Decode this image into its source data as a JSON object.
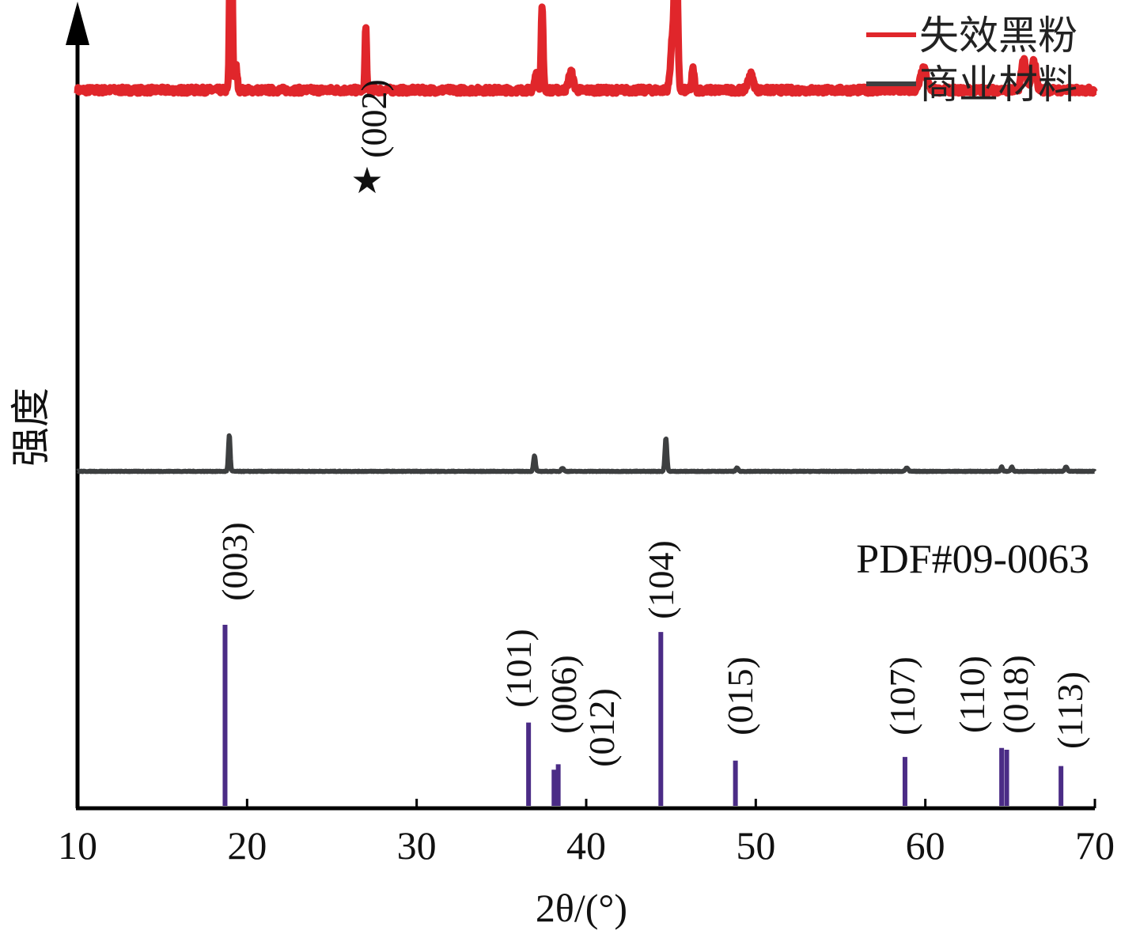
{
  "chart_data": {
    "type": "line",
    "xlabel": "2θ/(°)",
    "ylabel": "强度",
    "xlim": [
      10,
      70
    ],
    "xticks": [
      "10",
      "20",
      "30",
      "40",
      "50",
      "60",
      "70"
    ],
    "grid": false,
    "legend_position": "top-right",
    "reference_label": "PDF#09-0063",
    "star_annotation": {
      "marker": "★",
      "label": "(002)",
      "x": 27.0
    },
    "series": [
      {
        "name": "失效黑粉",
        "color": "#e0262b",
        "baseline": 0.7,
        "noise": 0.012,
        "peaks": [
          {
            "x": 19.05,
            "h": 0.97,
            "w": 0.11
          },
          {
            "x": 19.35,
            "h": 0.09,
            "w": 0.12
          },
          {
            "x": 27.0,
            "h": 0.24,
            "w": 0.08
          },
          {
            "x": 37.4,
            "h": 0.32,
            "w": 0.1
          },
          {
            "x": 37.05,
            "h": 0.06,
            "w": 0.15
          },
          {
            "x": 39.1,
            "h": 0.07,
            "w": 0.22
          },
          {
            "x": 45.3,
            "h": 0.64,
            "w": 0.14
          },
          {
            "x": 45.1,
            "h": 0.2,
            "w": 0.2
          },
          {
            "x": 46.3,
            "h": 0.08,
            "w": 0.12
          },
          {
            "x": 49.7,
            "h": 0.06,
            "w": 0.25
          },
          {
            "x": 59.9,
            "h": 0.08,
            "w": 0.3
          },
          {
            "x": 65.8,
            "h": 0.12,
            "w": 0.22
          },
          {
            "x": 66.4,
            "h": 0.11,
            "w": 0.22
          }
        ]
      },
      {
        "name": "商业材料",
        "color": "#3d3f40",
        "baseline": 0.1,
        "noise": 0.003,
        "peaks": [
          {
            "x": 18.95,
            "h": 0.33,
            "w": 0.09
          },
          {
            "x": 36.95,
            "h": 0.14,
            "w": 0.1
          },
          {
            "x": 38.6,
            "h": 0.03,
            "w": 0.12
          },
          {
            "x": 44.7,
            "h": 0.3,
            "w": 0.1
          },
          {
            "x": 48.9,
            "h": 0.03,
            "w": 0.12
          },
          {
            "x": 58.9,
            "h": 0.03,
            "w": 0.14
          },
          {
            "x": 64.5,
            "h": 0.04,
            "w": 0.1
          },
          {
            "x": 65.1,
            "h": 0.04,
            "w": 0.1
          },
          {
            "x": 68.3,
            "h": 0.04,
            "w": 0.12
          }
        ]
      }
    ],
    "reference_peaks": {
      "color": "#4b2c86",
      "peaks": [
        {
          "x": 18.7,
          "intensity": 100,
          "hkl": "(003)"
        },
        {
          "x": 36.6,
          "intensity": 46,
          "hkl": "(101)"
        },
        {
          "x": 38.1,
          "intensity": 20,
          "hkl": "(006)"
        },
        {
          "x": 38.35,
          "intensity": 23,
          "hkl": "(012)"
        },
        {
          "x": 44.4,
          "intensity": 96,
          "hkl": "(104)"
        },
        {
          "x": 48.8,
          "intensity": 25,
          "hkl": "(015)"
        },
        {
          "x": 58.8,
          "intensity": 27,
          "hkl": "(107)"
        },
        {
          "x": 64.5,
          "intensity": 32,
          "hkl": "(110)"
        },
        {
          "x": 64.8,
          "intensity": 31,
          "hkl": "(018)"
        },
        {
          "x": 68.0,
          "intensity": 22,
          "hkl": "(113)"
        }
      ]
    }
  }
}
